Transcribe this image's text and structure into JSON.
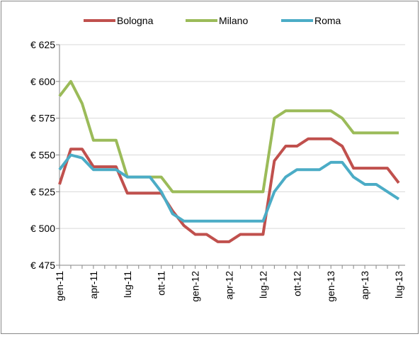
{
  "chart_data": {
    "type": "line",
    "categories": [
      "gen-11",
      null,
      null,
      "apr-11",
      null,
      null,
      "lug-11",
      null,
      null,
      "ott-11",
      null,
      null,
      "gen-12",
      null,
      null,
      "apr-12",
      null,
      null,
      "lug-12",
      null,
      null,
      "ott-12",
      null,
      null,
      "gen-13",
      null,
      null,
      "apr-13",
      null,
      null,
      "lug-13"
    ],
    "series": [
      {
        "name": "Bologna",
        "color": "#c0504d",
        "values": [
          530,
          554,
          554,
          542,
          542,
          542,
          524,
          524,
          524,
          524,
          512,
          502,
          496,
          496,
          491,
          491,
          496,
          496,
          496,
          546,
          556,
          556,
          561,
          561,
          561,
          556,
          541,
          541,
          541,
          541,
          531
        ]
      },
      {
        "name": "Milano",
        "color": "#9bbb59",
        "values": [
          590,
          600,
          585,
          560,
          560,
          560,
          535,
          535,
          535,
          535,
          525,
          525,
          525,
          525,
          525,
          525,
          525,
          525,
          525,
          575,
          580,
          580,
          580,
          580,
          580,
          575,
          565,
          565,
          565,
          565,
          565
        ]
      },
      {
        "name": "Roma",
        "color": "#4bacc6",
        "values": [
          540,
          550,
          548,
          540,
          540,
          540,
          535,
          535,
          535,
          525,
          510,
          505,
          505,
          505,
          505,
          505,
          505,
          505,
          505,
          525,
          535,
          540,
          540,
          540,
          545,
          545,
          535,
          530,
          530,
          525,
          520
        ]
      }
    ],
    "ylim": [
      475,
      625
    ],
    "yticks": [
      {
        "value": 475,
        "label": "€ 475"
      },
      {
        "value": 500,
        "label": "€ 500"
      },
      {
        "value": 525,
        "label": "€ 525"
      },
      {
        "value": 550,
        "label": "€ 550"
      },
      {
        "value": 575,
        "label": "€ 575"
      },
      {
        "value": 600,
        "label": "€ 600"
      },
      {
        "value": 625,
        "label": "€ 625"
      }
    ],
    "grid": true,
    "legend": "top"
  }
}
